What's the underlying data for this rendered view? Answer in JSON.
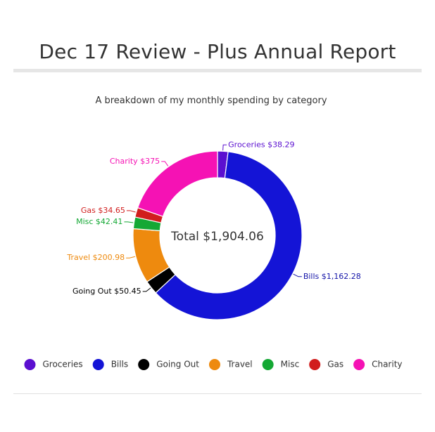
{
  "header": {
    "title": "Dec 17 Review - Plus Annual Report"
  },
  "chart_data": {
    "type": "pie",
    "title": "A breakdown of my monthly spending by category",
    "center_label": "Total $1,904.06",
    "categories": [
      "Groceries",
      "Bills",
      "Going Out",
      "Travel",
      "Misc",
      "Gas",
      "Charity"
    ],
    "values": [
      38.29,
      1162.28,
      50.45,
      200.98,
      42.41,
      34.65,
      375
    ],
    "data_labels": [
      "Groceries $38.29",
      "Bills $1,162.28",
      "Going Out $50.45",
      "Travel $200.98",
      "Misc $42.41",
      "Gas $34.65",
      "Charity $375"
    ],
    "colors": [
      "#5b0fd0",
      "#1414d6",
      "#000000",
      "#ee8a0e",
      "#14a834",
      "#d11d1d",
      "#f512b4"
    ],
    "label_colors": [
      "#5b0fd0",
      "#1414a8",
      "#000000",
      "#ee8a0e",
      "#14a834",
      "#d11d1d",
      "#f512b4"
    ],
    "donut": true,
    "legend_position": "bottom"
  }
}
